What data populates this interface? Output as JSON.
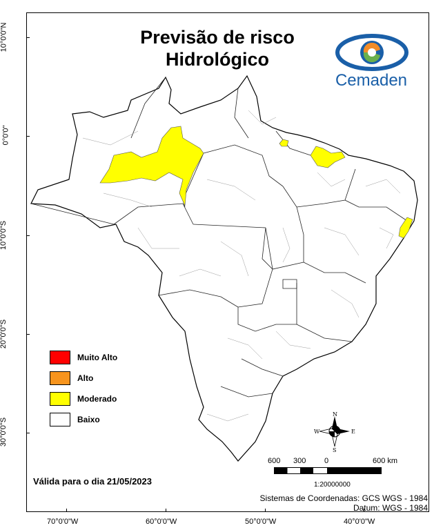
{
  "title": {
    "line1": "Previsão de risco",
    "line2": "Hidrológico"
  },
  "logo": {
    "text": "Cemaden",
    "colors": {
      "blue": "#1a5fa8",
      "orange": "#f28c28",
      "green": "#6ab04c"
    }
  },
  "axes": {
    "lat_labels": [
      "10°0'0\"N",
      "0°0'0\"",
      "10°0'0\"S",
      "20°0'0\"S",
      "30°0'0\"S"
    ],
    "lon_labels": [
      "70°0'0\"W",
      "60°0'0\"W",
      "50°0'0\"W",
      "40°0'0\"W"
    ]
  },
  "legend": {
    "items": [
      {
        "label": "Muito Alto",
        "color": "#ff0000"
      },
      {
        "label": "Alto",
        "color": "#f7941d"
      },
      {
        "label": "Moderado",
        "color": "#ffff00"
      },
      {
        "label": "Baixo",
        "color": "#ffffff"
      }
    ]
  },
  "valid_date": "Válida para o dia 21/05/2023",
  "north_arrow": {
    "n": "N",
    "s": "S",
    "e": "E",
    "w": "W"
  },
  "scale_bar": {
    "labels": [
      "600",
      "300",
      "0",
      "600 km"
    ],
    "ratio": "1:20000000"
  },
  "coordinate_system": {
    "line1": "Sistemas de Coordenadas: GCS WGS - 1984",
    "line2": "Datum: WGS - 1984"
  }
}
